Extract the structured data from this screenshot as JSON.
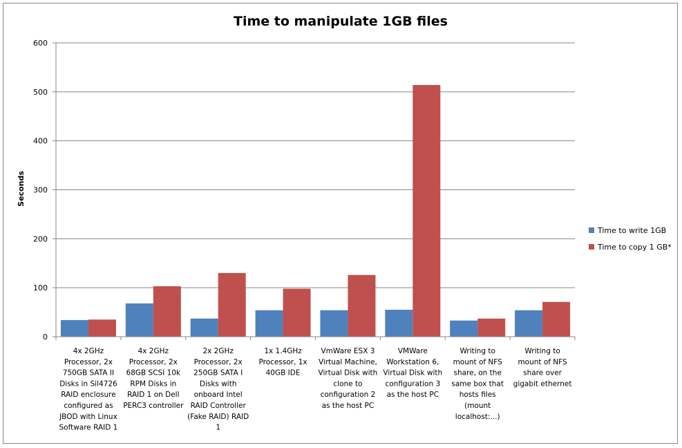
{
  "chart_data": {
    "type": "bar",
    "title": "Time to manipulate 1GB files",
    "xlabel": "",
    "ylabel": "Seconds",
    "ylim": [
      0,
      600
    ],
    "yticks": [
      0,
      100,
      200,
      300,
      400,
      500,
      600
    ],
    "grid": true,
    "legend_position": "right",
    "categories": [
      [
        "4x 2GHz",
        "Processor, 2x",
        "750GB SATA II",
        "Disks in Sil4726",
        "RAID enclosure",
        "configured as",
        "JBOD with Linux",
        "Software RAID 1"
      ],
      [
        "4x 2GHz",
        "Processor, 2x",
        "68GB SCSI 10k",
        "RPM Disks in",
        "RAID 1 on Dell",
        "PERC3 controller"
      ],
      [
        "2x 2GHz",
        "Processor, 2x",
        "250GB SATA I",
        "Disks with",
        "onboard Intel",
        "RAID Controller",
        "(Fake RAID) RAID",
        "1"
      ],
      [
        "1x 1.4GHz",
        "Processor, 1x",
        "40GB IDE"
      ],
      [
        "VmWare ESX 3",
        "Virtual Machine,",
        "Virtual Disk with",
        "clone to",
        "configuration 2",
        "as the host PC"
      ],
      [
        "VMWare",
        "Workstation 6,",
        "Virtual Disk with",
        "configuration 3",
        "as the host PC"
      ],
      [
        "Writing to",
        "mount of NFS",
        "share, on the",
        "same box that",
        "hosts files",
        "(mount",
        "localhost:...)"
      ],
      [
        "Writing to",
        "mount of NFS",
        "share over",
        "gigabit ethernet"
      ]
    ],
    "series": [
      {
        "name": "Time to write 1GB",
        "color": "#4F81BD",
        "values": [
          34,
          68,
          37,
          54,
          54,
          55,
          33,
          54
        ]
      },
      {
        "name": "Time to copy 1 GB*",
        "color": "#C0504D",
        "values": [
          35,
          103,
          130,
          98,
          126,
          514,
          37,
          71
        ]
      }
    ]
  }
}
